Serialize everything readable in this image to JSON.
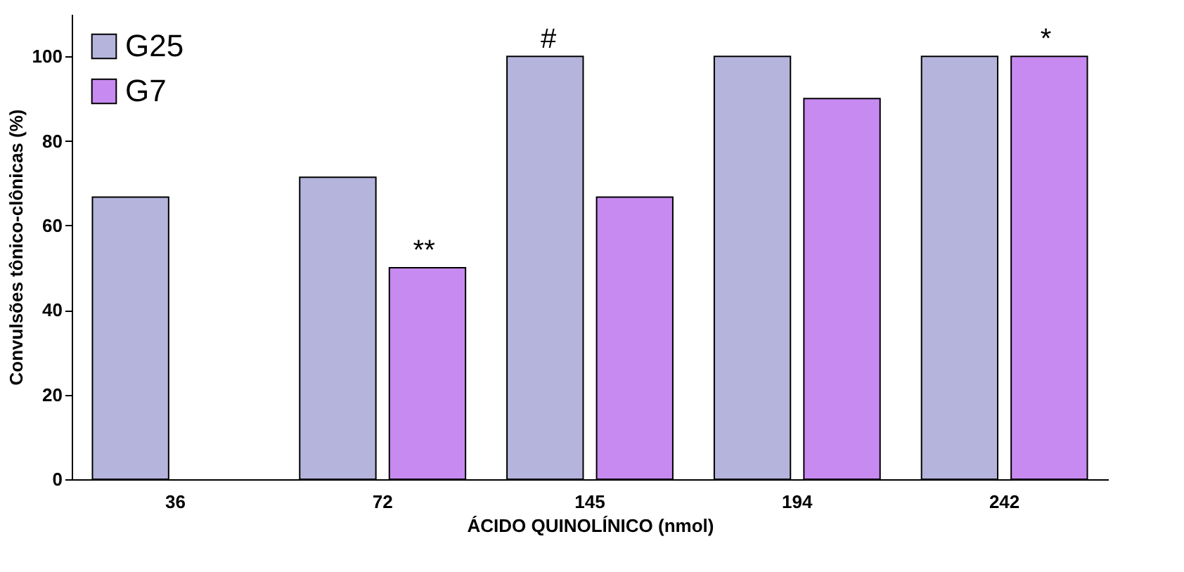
{
  "chart_data": {
    "type": "bar",
    "xlabel": "ÁCIDO QUINOLÍNICO (nmol)",
    "ylabel": "Convulsões tônico-clônicas (%)",
    "categories": [
      "36",
      "72",
      "145",
      "194",
      "242"
    ],
    "series": [
      {
        "name": "G25",
        "color": "#b4b4dc",
        "values": [
          66.7,
          71.4,
          100,
          100,
          100
        ]
      },
      {
        "name": "G7",
        "color": "#c78af0",
        "values": [
          null,
          50,
          66.7,
          90,
          100
        ]
      }
    ],
    "ylim": [
      0,
      110
    ],
    "yticks": [
      0,
      20,
      40,
      60,
      80,
      100
    ],
    "grid": false,
    "legend": "top left",
    "annotations": [
      {
        "text": "**",
        "x": "72",
        "y": 50
      },
      {
        "text": "#",
        "x": "145",
        "y": 100
      },
      {
        "text": "*",
        "x": "242",
        "y": 100
      }
    ]
  }
}
